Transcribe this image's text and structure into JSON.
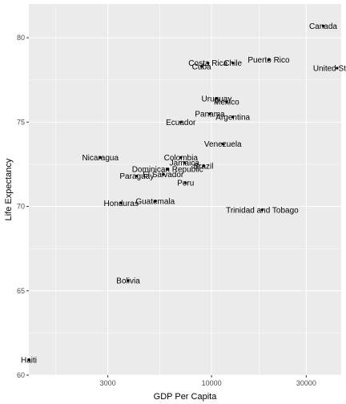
{
  "chart_data": {
    "type": "scatter",
    "xlabel": "GDP Per Capita",
    "ylabel": "Life Expectancy",
    "x_scale": "log10",
    "xlim": [
      1200,
      45000
    ],
    "ylim": [
      60,
      82
    ],
    "x_ticks": [
      3000,
      10000,
      30000
    ],
    "x_tick_labels": [
      "3000",
      "10000",
      "30000"
    ],
    "y_ticks": [
      60,
      65,
      70,
      75,
      80
    ],
    "y_tick_labels": [
      "60",
      "65",
      "70",
      "75",
      "80"
    ],
    "grid": true,
    "point_color": "#000000",
    "panel_color": "#ebebeb",
    "grid_color": "#ffffff",
    "points": [
      {
        "label": "Canada",
        "x": 36500,
        "y": 80.7
      },
      {
        "label": "Costa Rica",
        "x": 9600,
        "y": 78.5
      },
      {
        "label": "Cuba",
        "x": 8900,
        "y": 78.3
      },
      {
        "label": "Chile",
        "x": 12800,
        "y": 78.5
      },
      {
        "label": "Puerto Rico",
        "x": 19400,
        "y": 78.7
      },
      {
        "label": "United States",
        "x": 42900,
        "y": 78.2
      },
      {
        "label": "Uruguay",
        "x": 10600,
        "y": 76.4
      },
      {
        "label": "Mexico",
        "x": 11900,
        "y": 76.2
      },
      {
        "label": "Panama",
        "x": 9800,
        "y": 75.5
      },
      {
        "label": "Argentina",
        "x": 12800,
        "y": 75.3
      },
      {
        "label": "Ecuador",
        "x": 7000,
        "y": 75.0
      },
      {
        "label": "Venezuela",
        "x": 11400,
        "y": 73.7
      },
      {
        "label": "Nicaragua",
        "x": 2750,
        "y": 72.9
      },
      {
        "label": "Colombia",
        "x": 7000,
        "y": 72.9
      },
      {
        "label": "Jamaica",
        "x": 7300,
        "y": 72.6
      },
      {
        "label": "Brazil",
        "x": 9100,
        "y": 72.4
      },
      {
        "label": "Dominican Republic",
        "x": 6000,
        "y": 72.2
      },
      {
        "label": "El Salvador",
        "x": 5700,
        "y": 71.9
      },
      {
        "label": "Paraguay",
        "x": 4200,
        "y": 71.8
      },
      {
        "label": "Peru",
        "x": 7400,
        "y": 71.4
      },
      {
        "label": "Honduras",
        "x": 3500,
        "y": 70.2
      },
      {
        "label": "Guatemala",
        "x": 5200,
        "y": 70.3
      },
      {
        "label": "Trinidad and Tobago",
        "x": 18000,
        "y": 69.8
      },
      {
        "label": "Bolivia",
        "x": 3800,
        "y": 65.6
      },
      {
        "label": "Haiti",
        "x": 1200,
        "y": 60.9
      }
    ]
  }
}
